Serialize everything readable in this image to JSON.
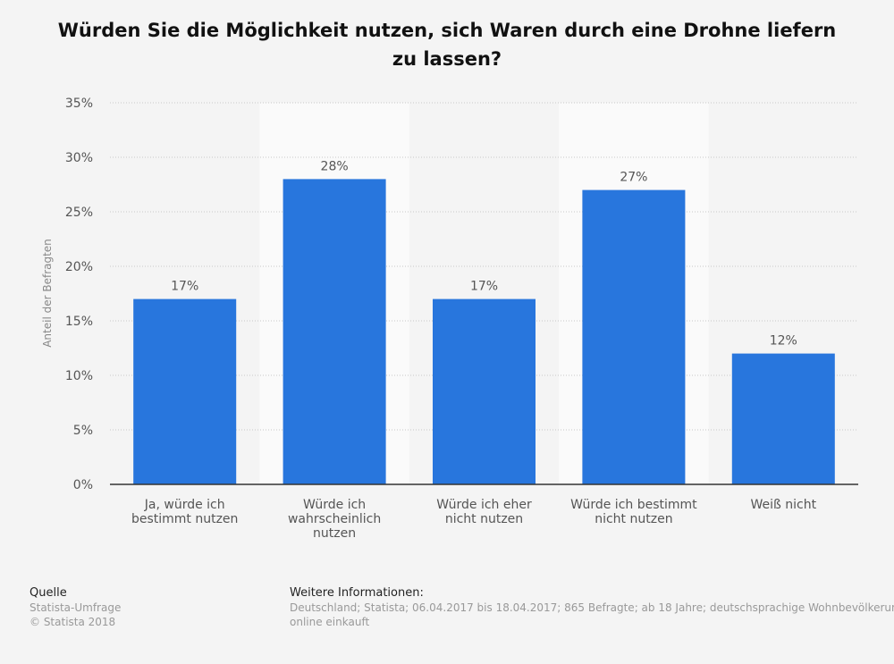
{
  "title": "Würden Sie die Möglichkeit nutzen, sich Waren durch eine Drohne liefern zu lassen?",
  "source": {
    "heading": "Quelle",
    "line1": "Statista-Umfrage",
    "line2": "© Statista 2018"
  },
  "info": {
    "heading": "Weitere Informationen:",
    "line1": "Deutschland; Statista; 06.04.2017 bis 18.04.2017; 865 Befragte; ab 18 Jahre; deutschsprachige Wohnbevölkerung, die",
    "line2": "online einkauft"
  },
  "colors": {
    "bar": "#2876dd",
    "band": "#fafafa",
    "grid": "#c8c8c8",
    "axis": "#333333",
    "text": "#555555"
  },
  "chart_data": {
    "type": "bar",
    "ylabel": "Anteil der Befragten",
    "ylim": [
      0,
      35
    ],
    "yticks": [
      "0%",
      "5%",
      "10%",
      "15%",
      "20%",
      "25%",
      "30%",
      "35%"
    ],
    "grid": true,
    "categories": [
      [
        "Ja, würde ich",
        "bestimmt nutzen"
      ],
      [
        "Würde ich",
        "wahrscheinlich",
        "nutzen"
      ],
      [
        "Würde ich eher",
        "nicht nutzen"
      ],
      [
        "Würde ich bestimmt",
        "nicht nutzen"
      ],
      [
        "Weiß nicht"
      ]
    ],
    "values": [
      17,
      28,
      17,
      27,
      12
    ],
    "value_labels": [
      "17%",
      "28%",
      "17%",
      "27%",
      "12%"
    ]
  }
}
